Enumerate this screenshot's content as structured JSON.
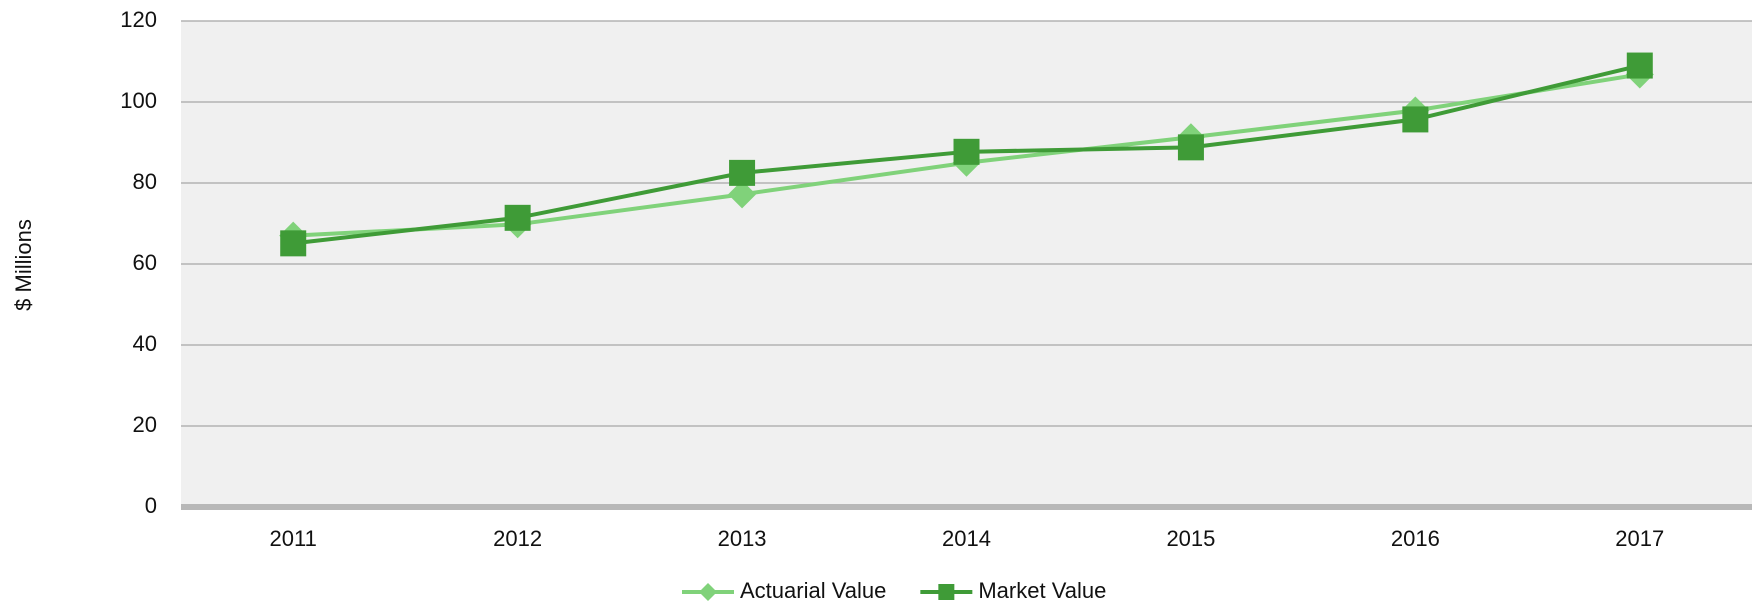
{
  "chart_data": {
    "type": "line",
    "y_label": "$ Millions",
    "categories": [
      "2011",
      "2012",
      "2013",
      "2014",
      "2015",
      "2016",
      "2017"
    ],
    "series": [
      {
        "name": "Actuarial Value",
        "color": "#80d27a",
        "marker": "diamond",
        "values": [
          67.0,
          69.8,
          77.2,
          85.0,
          91.3,
          97.9,
          106.8
        ]
      },
      {
        "name": "Market Value",
        "color": "#3f9b37",
        "marker": "square",
        "values": [
          65.1,
          71.4,
          82.5,
          87.7,
          88.8,
          95.7,
          109.0
        ]
      }
    ],
    "ylim": [
      0,
      120
    ],
    "yticks": [
      0,
      20,
      40,
      60,
      80,
      100,
      120
    ],
    "grid": true,
    "legend": "bottom"
  }
}
